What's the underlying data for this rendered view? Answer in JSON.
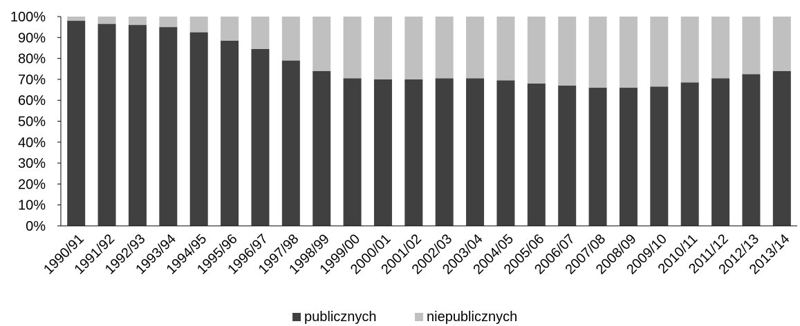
{
  "chart_data": {
    "type": "bar",
    "stacked": true,
    "percent": true,
    "categories": [
      "1990/91",
      "1991/92",
      "1992/93",
      "1993/94",
      "1994/95",
      "1995/96",
      "1996/97",
      "1997/98",
      "1998/99",
      "1999/00",
      "2000/01",
      "2001/02",
      "2002/03",
      "2003/04",
      "2004/05",
      "2005/06",
      "2006/07",
      "2007/08",
      "2008/09",
      "2009/10",
      "2010/11",
      "2011/12",
      "2012/13",
      "2013/14"
    ],
    "series": [
      {
        "name": "publicznych",
        "color": "#404040",
        "values": [
          98,
          96.5,
          96,
          95,
          92.5,
          88.5,
          84.5,
          79,
          74,
          70.5,
          70,
          70,
          70.5,
          70.5,
          69.5,
          68,
          67,
          66,
          66,
          66.5,
          68.5,
          70.5,
          72.5,
          74
        ]
      },
      {
        "name": "niepublicznych",
        "color": "#c0c0c0",
        "values": [
          2,
          3.5,
          4,
          5,
          7.5,
          11.5,
          15.5,
          21,
          26,
          29.5,
          30,
          30,
          29.5,
          29.5,
          30.5,
          32,
          33,
          34,
          34,
          33.5,
          31.5,
          29.5,
          27.5,
          26
        ]
      }
    ],
    "yticks": [
      "0%",
      "10%",
      "20%",
      "30%",
      "40%",
      "50%",
      "60%",
      "70%",
      "80%",
      "90%",
      "100%"
    ],
    "ylim": [
      0,
      100
    ],
    "title": "",
    "xlabel": "",
    "ylabel": "",
    "grid": false,
    "legend": "bottom-center"
  }
}
